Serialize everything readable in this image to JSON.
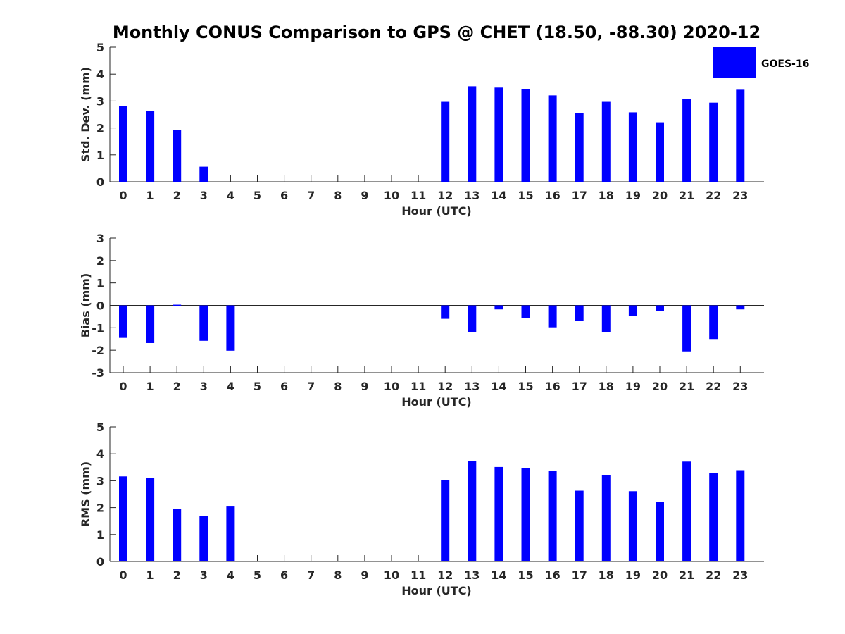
{
  "title": "Monthly CONUS Comparison to GPS @ CHET (18.50, -88.30) 2020-12",
  "legend": {
    "label": "GOES-16",
    "color": "#0000ff"
  },
  "chart_data": [
    {
      "type": "bar",
      "xlabel": "Hour (UTC)",
      "ylabel": "Std. Dev. (mm)",
      "ylim": [
        0,
        5
      ],
      "yticks": [
        "0",
        "1",
        "2",
        "3",
        "4",
        "5"
      ],
      "categories": [
        "0",
        "1",
        "2",
        "3",
        "4",
        "5",
        "6",
        "7",
        "8",
        "9",
        "10",
        "11",
        "12",
        "13",
        "14",
        "15",
        "16",
        "17",
        "18",
        "19",
        "20",
        "21",
        "22",
        "23"
      ],
      "series": [
        {
          "name": "GOES-16",
          "values": [
            2.82,
            2.63,
            1.92,
            0.56,
            null,
            null,
            null,
            null,
            null,
            null,
            null,
            null,
            2.97,
            3.55,
            3.5,
            3.44,
            3.21,
            2.55,
            2.97,
            2.58,
            2.21,
            3.08,
            2.94,
            3.42
          ]
        }
      ]
    },
    {
      "type": "bar",
      "xlabel": "Hour (UTC)",
      "ylabel": "Bias (mm)",
      "ylim": [
        -3,
        3
      ],
      "yticks": [
        "-3",
        "-2",
        "-1",
        "0",
        "1",
        "2",
        "3"
      ],
      "categories": [
        "0",
        "1",
        "2",
        "3",
        "4",
        "5",
        "6",
        "7",
        "8",
        "9",
        "10",
        "11",
        "12",
        "13",
        "14",
        "15",
        "16",
        "17",
        "18",
        "19",
        "20",
        "21",
        "22",
        "23"
      ],
      "series": [
        {
          "name": "GOES-16",
          "values": [
            -1.45,
            -1.68,
            0.03,
            -1.58,
            -2.02,
            null,
            null,
            null,
            null,
            null,
            null,
            null,
            -0.6,
            -1.2,
            -0.18,
            -0.55,
            -0.98,
            -0.68,
            -1.2,
            -0.46,
            -0.26,
            -2.05,
            -1.5,
            -0.18
          ]
        }
      ]
    },
    {
      "type": "bar",
      "xlabel": "Hour (UTC)",
      "ylabel": "RMS (mm)",
      "ylim": [
        0,
        5
      ],
      "yticks": [
        "0",
        "1",
        "2",
        "3",
        "4",
        "5"
      ],
      "categories": [
        "0",
        "1",
        "2",
        "3",
        "4",
        "5",
        "6",
        "7",
        "8",
        "9",
        "10",
        "11",
        "12",
        "13",
        "14",
        "15",
        "16",
        "17",
        "18",
        "19",
        "20",
        "21",
        "22",
        "23"
      ],
      "series": [
        {
          "name": "GOES-16",
          "values": [
            3.16,
            3.1,
            1.94,
            1.68,
            2.04,
            null,
            null,
            null,
            null,
            null,
            null,
            null,
            3.03,
            3.74,
            3.51,
            3.48,
            3.37,
            2.63,
            3.21,
            2.61,
            2.22,
            3.71,
            3.29,
            3.39
          ]
        }
      ]
    }
  ]
}
